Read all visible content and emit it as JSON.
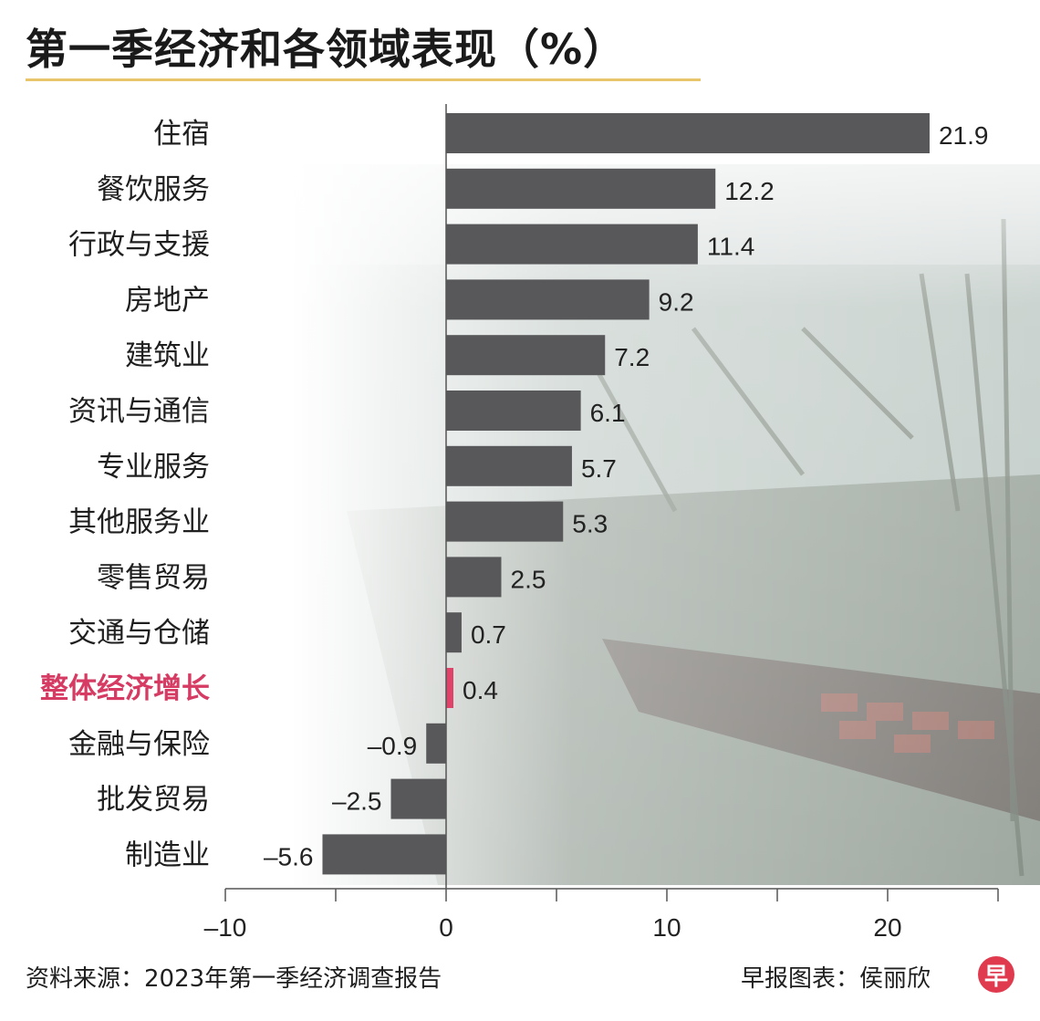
{
  "title": "第一季经济和各领域表现（%）",
  "source": "资料来源：2023年第一季经济调查报告",
  "credit": "早报图表：侯丽欣",
  "logo_char": "早",
  "colors": {
    "bar": "#58585a",
    "highlight": "#e0436a",
    "highlight_text": "#d63b63",
    "axis": "#555555",
    "underline": "#e8c46b"
  },
  "chart_data": {
    "type": "bar",
    "orientation": "horizontal",
    "title": "第一季经济和各领域表现（%）",
    "categories": [
      "住宿",
      "餐饮服务",
      "行政与支援",
      "房地产",
      "建筑业",
      "资讯与通信",
      "专业服务",
      "其他服务业",
      "零售贸易",
      "交通与仓储",
      "整体经济增长",
      "金融与保险",
      "批发贸易",
      "制造业"
    ],
    "values": [
      21.9,
      12.2,
      11.4,
      9.2,
      7.2,
      6.1,
      5.7,
      5.3,
      2.5,
      0.7,
      0.4,
      -0.9,
      -2.5,
      -5.6
    ],
    "value_labels": [
      "21.9",
      "12.2",
      "11.4",
      "9.2",
      "7.2",
      "6.1",
      "5.7",
      "5.3",
      "2.5",
      "0.7",
      "0.4",
      "–0.9",
      "–2.5",
      "–5.6"
    ],
    "highlight_category": "整体经济增长",
    "xlim": [
      -10,
      25
    ],
    "x_ticks": [
      -10,
      -5,
      0,
      5,
      10,
      15,
      20,
      25
    ],
    "x_tick_labels": [
      {
        "value": -10,
        "label": "–10"
      },
      {
        "value": 0,
        "label": "0"
      },
      {
        "value": 10,
        "label": "10"
      },
      {
        "value": 20,
        "label": "20"
      }
    ],
    "grid": false,
    "legend": "none"
  }
}
